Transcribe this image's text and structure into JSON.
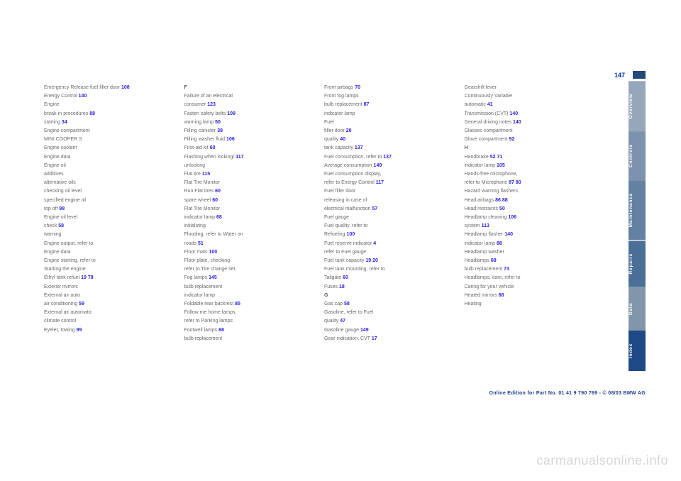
{
  "pageNumber": "147",
  "watermark": "carmanualsonline.info",
  "copyright": "Online Edition for Part No. 01 41 9 790 769 - © 08/03 BMW AG",
  "tabs": [
    {
      "label": "Overview",
      "cls": "t-over"
    },
    {
      "label": "Controls",
      "cls": "t-ctrl"
    },
    {
      "label": "Maintenance",
      "cls": "t-maint"
    },
    {
      "label": "Repairs",
      "cls": "t-rep"
    },
    {
      "label": "Data",
      "cls": "t-data"
    },
    {
      "label": "Index",
      "cls": "t-idx"
    }
  ],
  "columns": [
    [
      {
        "t": "Emergency Release fuel filler door",
        "p": "108"
      },
      {
        "t": "Energy Control",
        "p": "140"
      },
      {
        "t": "Engine"
      },
      {
        "t": "  break-in procedures",
        "p": "88"
      },
      {
        "t": "  starting",
        "p": "34"
      },
      {
        "t": "Engine compartment"
      },
      {
        "t": "  MINI COOPER S"
      },
      {
        "t": "Engine coolant"
      },
      {
        "t": "Engine data"
      },
      {
        "t": "Engine oil"
      },
      {
        "t": "  additives"
      },
      {
        "t": "  alternative oils"
      },
      {
        "t": "  checking oil level"
      },
      {
        "t": "  specified engine oil"
      },
      {
        "t": "  top off",
        "p": "98"
      },
      {
        "t": "Engine oil level"
      },
      {
        "t": "  check",
        "p": "58"
      },
      {
        "t": "  warning"
      },
      {
        "t": "Engine output, refer to"
      },
      {
        "t": "  Engine data"
      },
      {
        "t": "Engine starting, refer to"
      },
      {
        "t": "  Starting the engine"
      },
      {
        "t": "Ethyl tank refuel",
        "p": "19",
        "p2": "78"
      },
      {
        "t": "Exterior mirrors"
      },
      {
        "t": "External air auto"
      },
      {
        "t": "  air conditioning",
        "p": "59"
      },
      {
        "t": "External air automatic"
      },
      {
        "t": "  climate control"
      },
      {
        "t": "Eyelet, towing",
        "p": "99"
      }
    ],
    [
      {
        "t": "F",
        "hdr": true
      },
      {
        "t": "Failure of an electrical"
      },
      {
        "t": "  consumer",
        "p": "123"
      },
      {
        "t": "Fasten safety belts",
        "p": "109"
      },
      {
        "t": "  warning lamp",
        "p": "50"
      },
      {
        "t": "Filling canister",
        "p": "38"
      },
      {
        "t": "Filling washer fluid",
        "p": "106"
      },
      {
        "t": "First-aid kit",
        "p": "60"
      },
      {
        "t": "Flashing when locking/",
        "p": "117"
      },
      {
        "t": "  unlocking"
      },
      {
        "t": "Flat tire",
        "p": "115"
      },
      {
        "t": "  Flat Tire Monitor"
      },
      {
        "t": "  Run Flat tires",
        "p": "60"
      },
      {
        "t": "  spare wheel",
        "p": "60"
      },
      {
        "t": "Flat Tire Monitor"
      },
      {
        "t": "  indicator lamp",
        "p": "68"
      },
      {
        "t": "  initializing"
      },
      {
        "t": "Flooding, refer to Water on"
      },
      {
        "t": "  roads",
        "p": "51"
      },
      {
        "t": "Floor mats",
        "p": "100"
      },
      {
        "t": "Floor plate, checking"
      },
      {
        "t": "  refer to Tire change set"
      },
      {
        "t": "Fog lamps",
        "p": "145"
      },
      {
        "t": "  bulb replacement"
      },
      {
        "t": "  indicator lamp"
      },
      {
        "t": "Foldable rear backrest",
        "p": "85"
      },
      {
        "t": "Follow me home lamps,"
      },
      {
        "t": "  refer to Parking lamps"
      },
      {
        "t": "Footwell lamps",
        "p": "68"
      },
      {
        "t": "  bulb replacement"
      }
    ],
    [
      {
        "t": "Front airbags",
        "p": "70"
      },
      {
        "t": "Front fog lamps"
      },
      {
        "t": "  bulb replacement",
        "p": "87"
      },
      {
        "t": "  indicator lamp"
      },
      {
        "t": "Fuel"
      },
      {
        "t": "  filler door",
        "p": "20"
      },
      {
        "t": "  quality",
        "p": "40"
      },
      {
        "t": "  tank capacity",
        "p": "137"
      },
      {
        "t": "Fuel consumption, refer to",
        "p": "137"
      },
      {
        "t": "  Average consumption",
        "p": "149"
      },
      {
        "t": "Fuel consumption display,"
      },
      {
        "t": "  refer to Energy Control",
        "p": "117"
      },
      {
        "t": "Fuel filler door"
      },
      {
        "t": "  releasing in case of"
      },
      {
        "t": "  electrical malfunction",
        "p": "57"
      },
      {
        "t": "Fuel gauge"
      },
      {
        "t": "Fuel quality, refer to"
      },
      {
        "t": "  Refueling",
        "p": "100"
      },
      {
        "t": "Fuel reserve indicator",
        "p": "4"
      },
      {
        "t": "  refer to Fuel gauge"
      },
      {
        "t": "Fuel tank capacity",
        "p": "19",
        "p2": "20"
      },
      {
        "t": "Fuel tank mounting, refer to"
      },
      {
        "t": "  Tailgate",
        "p": "60"
      },
      {
        "t": "Fuses",
        "p": "18"
      },
      {
        "t": "G",
        "hdr": true
      },
      {
        "t": "Gas cap",
        "p": "58"
      },
      {
        "t": "Gasoline, refer to Fuel"
      },
      {
        "t": "  quality",
        "p": "47"
      },
      {
        "t": "Gasoline gauge",
        "p": "149"
      },
      {
        "t": "Gear indication, CVT",
        "p": "17"
      }
    ],
    [
      {
        "t": "Gearshift lever"
      },
      {
        "t": "Continuously Variable"
      },
      {
        "t": "  automatic",
        "p": "41"
      },
      {
        "t": "  Transmission (CVT)",
        "p": "140"
      },
      {
        "t": "General driving notes",
        "p": "140"
      },
      {
        "t": "Glasses compartment"
      },
      {
        "t": "Glove compartment",
        "p": "92"
      },
      {
        "t": "H",
        "hdr": true
      },
      {
        "t": "Handbrake",
        "p": "52",
        "p2": "71"
      },
      {
        "t": "  indicator lamp",
        "p": "105"
      },
      {
        "t": "Hands-free microphone,"
      },
      {
        "t": "  refer to Microphone",
        "p": "87",
        "p2": "80"
      },
      {
        "t": "Hazard warning flashers"
      },
      {
        "t": "Head airbags",
        "p": "86",
        "p2": "88"
      },
      {
        "t": "Head restraints",
        "p": "50"
      },
      {
        "t": "Headlamp cleaning",
        "p": "106"
      },
      {
        "t": "  system",
        "p": "113"
      },
      {
        "t": "Headlamp flasher",
        "p": "140"
      },
      {
        "t": "  indicator lamp",
        "p": "88"
      },
      {
        "t": "Headlamp washer"
      },
      {
        "t": "Headlamps",
        "p": "68"
      },
      {
        "t": "  bulb replacement",
        "p": "73"
      },
      {
        "t": "Headlamps, care, refer to"
      },
      {
        "t": "  Caring for your vehicle"
      },
      {
        "t": "Heated mirrors",
        "p": "68"
      },
      {
        "t": "Heating"
      }
    ]
  ]
}
